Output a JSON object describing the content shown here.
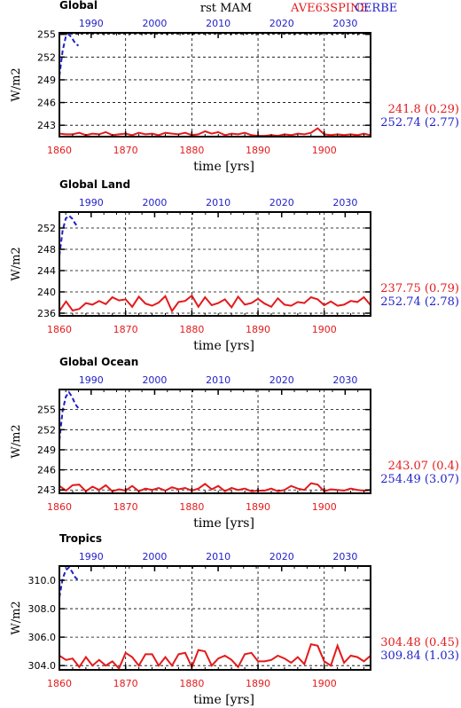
{
  "header": {
    "center": "rst MAM",
    "right_red": "AVE63SPINE",
    "right_blue": "CERBE"
  },
  "colors": {
    "red": "#e41a1c",
    "blue": "#1f1fc8",
    "black": "#000000"
  },
  "chart_data": [
    {
      "type": "line",
      "title": "Global",
      "xlabel": "time [yrs]",
      "ylabel": "W/m2",
      "x_bottom_ticks": [
        "1860",
        "1870",
        "1880",
        "1890",
        "1900"
      ],
      "x_top_ticks": [
        "1990",
        "2000",
        "2010",
        "2020",
        "2030"
      ],
      "xlim_bottom": [
        1860,
        1907
      ],
      "xlim_top": [
        1985,
        2034
      ],
      "ylim": [
        241.5,
        255.2
      ],
      "y_ticks": [
        243,
        246,
        249,
        252,
        255
      ],
      "y_tick_labels": [
        "243",
        "246",
        "249",
        "252",
        "255"
      ],
      "grid": true,
      "series": [
        {
          "color": "red",
          "axis": "bottom",
          "x": [
            1860,
            1861,
            1862,
            1863,
            1864,
            1865,
            1866,
            1867,
            1868,
            1869,
            1870,
            1871,
            1872,
            1873,
            1874,
            1875,
            1876,
            1877,
            1878,
            1879,
            1880,
            1881,
            1882,
            1883,
            1884,
            1885,
            1886,
            1887,
            1888,
            1889,
            1890,
            1891,
            1892,
            1893,
            1894,
            1895,
            1896,
            1897,
            1898,
            1899,
            1900,
            1901,
            1902,
            1903,
            1904,
            1905,
            1906,
            1907
          ],
          "values": [
            241.9,
            241.8,
            241.8,
            242.0,
            241.7,
            241.9,
            241.8,
            242.1,
            241.7,
            241.8,
            241.9,
            241.7,
            242.0,
            241.8,
            241.9,
            241.7,
            242.0,
            241.9,
            241.8,
            242.0,
            241.7,
            241.8,
            242.2,
            241.9,
            242.1,
            241.7,
            241.9,
            241.8,
            242.0,
            241.7,
            241.6,
            241.6,
            241.7,
            241.6,
            241.8,
            241.7,
            241.9,
            241.8,
            242.0,
            242.6,
            241.8,
            241.7,
            241.8,
            241.7,
            241.8,
            241.7,
            241.9,
            241.7
          ]
        },
        {
          "color": "blue",
          "axis": "top",
          "x": [
            1985.0,
            1985.5,
            1986.0,
            1986.5,
            1987.0,
            1987.5,
            1988.0
          ],
          "values": [
            249.5,
            252.8,
            254.7,
            255.0,
            254.5,
            253.8,
            253.5
          ]
        }
      ],
      "annotations": [
        {
          "text": "241.8 (0.29)",
          "color": "red"
        },
        {
          "text": "252.74 (2.77)",
          "color": "blue"
        }
      ]
    },
    {
      "type": "line",
      "title": "Global Land",
      "xlabel": "time [yrs]",
      "ylabel": "W/m2",
      "x_bottom_ticks": [
        "1860",
        "1870",
        "1880",
        "1890",
        "1900"
      ],
      "x_top_ticks": [
        "1990",
        "2000",
        "2010",
        "2020",
        "2030"
      ],
      "xlim_bottom": [
        1860,
        1907
      ],
      "xlim_top": [
        1985,
        2034
      ],
      "ylim": [
        235.5,
        255.0
      ],
      "y_ticks": [
        236,
        240,
        244,
        248,
        252
      ],
      "y_tick_labels": [
        "236",
        "240",
        "244",
        "248",
        "252"
      ],
      "grid": true,
      "series": [
        {
          "color": "red",
          "axis": "bottom",
          "x": [
            1860,
            1861,
            1862,
            1863,
            1864,
            1865,
            1866,
            1867,
            1868,
            1869,
            1870,
            1871,
            1872,
            1873,
            1874,
            1875,
            1876,
            1877,
            1878,
            1879,
            1880,
            1881,
            1882,
            1883,
            1884,
            1885,
            1886,
            1887,
            1888,
            1889,
            1890,
            1891,
            1892,
            1893,
            1894,
            1895,
            1896,
            1897,
            1898,
            1899,
            1900,
            1901,
            1902,
            1903,
            1904,
            1905,
            1906,
            1907
          ],
          "values": [
            236.4,
            238.2,
            236.5,
            236.8,
            237.9,
            237.6,
            238.3,
            237.7,
            239.0,
            238.4,
            238.6,
            237.2,
            239.1,
            237.8,
            237.4,
            238.0,
            239.2,
            236.4,
            238.1,
            238.3,
            239.3,
            237.2,
            239.0,
            237.5,
            237.9,
            238.6,
            237.1,
            239.1,
            237.6,
            237.9,
            238.7,
            237.8,
            237.2,
            238.8,
            237.6,
            237.4,
            238.1,
            237.9,
            239.0,
            238.6,
            237.5,
            238.2,
            237.4,
            237.6,
            238.3,
            238.1,
            239.0,
            237.5
          ]
        },
        {
          "color": "blue",
          "axis": "top",
          "x": [
            1985.0,
            1985.5,
            1986.0,
            1986.5,
            1987.0,
            1987.5,
            1988.0
          ],
          "values": [
            246.8,
            251.5,
            253.8,
            254.3,
            253.8,
            252.8,
            252.2
          ]
        }
      ],
      "annotations": [
        {
          "text": "237.75 (0.79)",
          "color": "red"
        },
        {
          "text": "252.74 (2.78)",
          "color": "blue"
        }
      ]
    },
    {
      "type": "line",
      "title": "Global Ocean",
      "xlabel": "time [yrs]",
      "ylabel": "W/m2",
      "x_bottom_ticks": [
        "1860",
        "1870",
        "1880",
        "1890",
        "1900"
      ],
      "x_top_ticks": [
        "1990",
        "2000",
        "2010",
        "2020",
        "2030"
      ],
      "xlim_bottom": [
        1860,
        1907
      ],
      "xlim_top": [
        1985,
        2034
      ],
      "ylim": [
        242.5,
        258.0
      ],
      "y_ticks": [
        243,
        246,
        249,
        252,
        255
      ],
      "y_tick_labels": [
        "243",
        "246",
        "249",
        "252",
        "255"
      ],
      "grid": true,
      "series": [
        {
          "color": "red",
          "axis": "bottom",
          "x": [
            1860,
            1861,
            1862,
            1863,
            1864,
            1865,
            1866,
            1867,
            1868,
            1869,
            1870,
            1871,
            1872,
            1873,
            1874,
            1875,
            1876,
            1877,
            1878,
            1879,
            1880,
            1881,
            1882,
            1883,
            1884,
            1885,
            1886,
            1887,
            1888,
            1889,
            1890,
            1891,
            1892,
            1893,
            1894,
            1895,
            1896,
            1897,
            1898,
            1899,
            1900,
            1901,
            1902,
            1903,
            1904,
            1905,
            1906,
            1907
          ],
          "values": [
            243.6,
            242.9,
            243.7,
            243.8,
            242.8,
            243.5,
            243.0,
            243.7,
            242.8,
            243.1,
            242.9,
            243.6,
            242.8,
            243.2,
            243.0,
            243.3,
            242.9,
            243.4,
            243.1,
            243.3,
            242.9,
            243.2,
            243.9,
            243.1,
            243.6,
            242.8,
            243.3,
            243.0,
            243.2,
            242.8,
            242.9,
            242.9,
            243.2,
            242.8,
            243.0,
            243.6,
            243.2,
            243.0,
            244.0,
            243.8,
            242.8,
            243.1,
            243.0,
            242.9,
            243.2,
            243.0,
            242.9,
            243.0
          ]
        },
        {
          "color": "blue",
          "axis": "top",
          "x": [
            1985.0,
            1985.5,
            1986.0,
            1986.5,
            1987.0,
            1987.5,
            1988.0
          ],
          "values": [
            250.4,
            254.8,
            256.9,
            257.6,
            256.9,
            255.8,
            255.2
          ]
        }
      ],
      "annotations": [
        {
          "text": "243.07 (0.4)",
          "color": "red"
        },
        {
          "text": "254.49 (3.07)",
          "color": "blue"
        }
      ]
    },
    {
      "type": "line",
      "title": "Tropics",
      "xlabel": "time [yrs]",
      "ylabel": "W/m2",
      "x_bottom_ticks": [
        "1860",
        "1870",
        "1880",
        "1890",
        "1900"
      ],
      "x_top_ticks": [
        "1990",
        "2000",
        "2010",
        "2020",
        "2030"
      ],
      "xlim_bottom": [
        1860,
        1907
      ],
      "xlim_top": [
        1985,
        2034
      ],
      "ylim": [
        303.7,
        311.0
      ],
      "y_ticks": [
        304,
        306,
        308,
        310
      ],
      "y_tick_labels": [
        "304.0",
        "306.0",
        "308.0",
        "310.0"
      ],
      "grid": true,
      "series": [
        {
          "color": "red",
          "axis": "bottom",
          "x": [
            1860,
            1861,
            1862,
            1863,
            1864,
            1865,
            1866,
            1867,
            1868,
            1869,
            1870,
            1871,
            1872,
            1873,
            1874,
            1875,
            1876,
            1877,
            1878,
            1879,
            1880,
            1881,
            1882,
            1883,
            1884,
            1885,
            1886,
            1887,
            1888,
            1889,
            1890,
            1891,
            1892,
            1893,
            1894,
            1895,
            1896,
            1897,
            1898,
            1899,
            1900,
            1901,
            1902,
            1903,
            1904,
            1905,
            1906,
            1907
          ],
          "values": [
            304.7,
            304.4,
            304.5,
            303.9,
            304.6,
            304.0,
            304.4,
            304.0,
            304.3,
            303.8,
            304.9,
            304.6,
            304.0,
            304.8,
            304.8,
            304.0,
            304.6,
            304.0,
            304.8,
            304.9,
            303.9,
            305.1,
            305.0,
            304.0,
            304.5,
            304.7,
            304.4,
            303.9,
            304.8,
            304.9,
            304.3,
            304.3,
            304.4,
            304.7,
            304.5,
            304.2,
            304.6,
            304.1,
            305.5,
            305.4,
            304.3,
            304.0,
            305.4,
            304.2,
            304.7,
            304.6,
            304.3,
            304.7
          ]
        },
        {
          "color": "blue",
          "axis": "top",
          "x": [
            1985.0,
            1985.5,
            1986.0,
            1986.5,
            1987.0,
            1987.5,
            1988.0
          ],
          "values": [
            308.8,
            310.1,
            310.7,
            310.9,
            310.6,
            310.2,
            310.0
          ]
        }
      ],
      "annotations": [
        {
          "text": "304.48 (0.45)",
          "color": "red"
        },
        {
          "text": "309.84 (1.03)",
          "color": "blue"
        }
      ]
    }
  ]
}
